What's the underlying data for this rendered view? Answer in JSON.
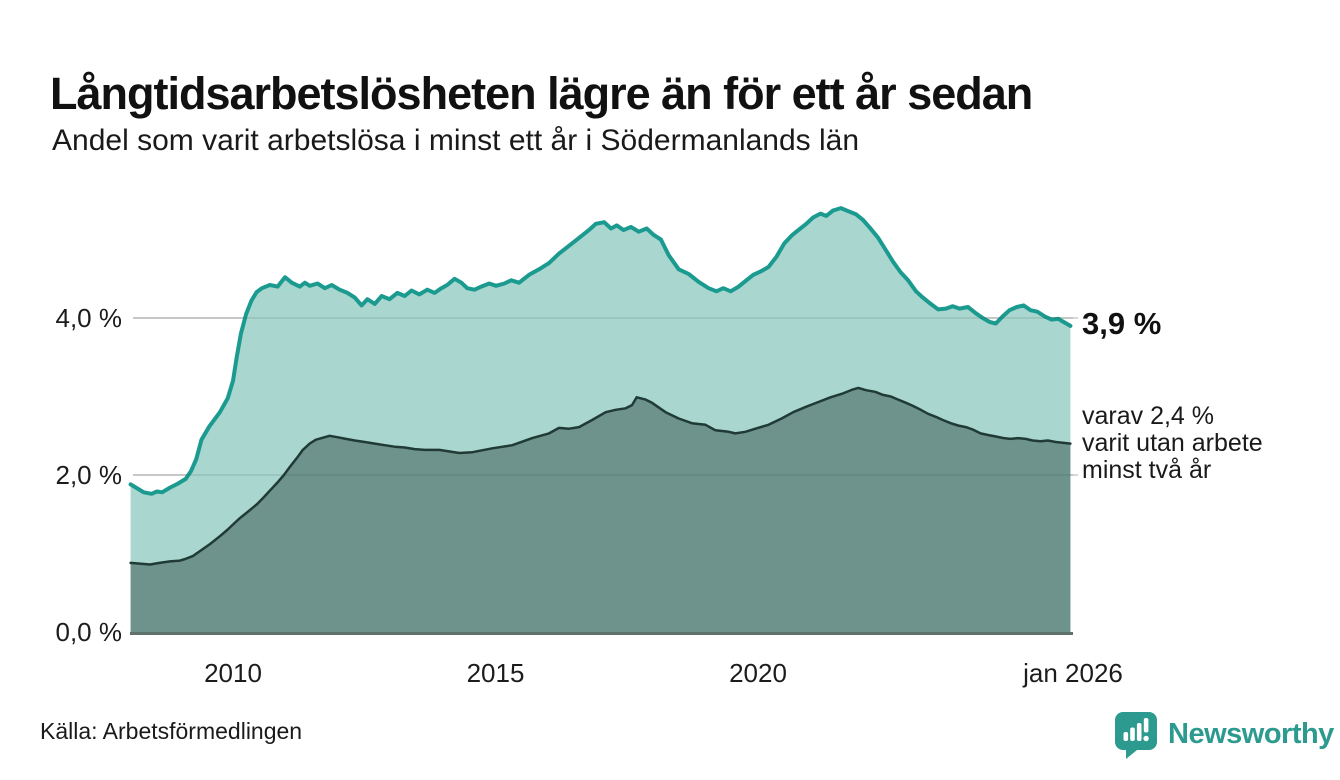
{
  "header": {
    "title": "Långtidsarbetslösheten lägre än för ett år sedan",
    "subtitle": "Andel som varit arbetslösa i minst ett år i Södermanlands län"
  },
  "footer": {
    "source": "Källa: Arbetsförmedlingen",
    "brand": "Newsworthy"
  },
  "chart_data": {
    "type": "area",
    "title": "Långtidsarbetslösheten lägre än för ett år sedan",
    "subtitle": "Andel som varit arbetslösa i minst ett år i Södermanlands län",
    "unit": "%",
    "x_range": [
      2008.0,
      2026.0
    ],
    "ylim": [
      0,
      5.5
    ],
    "grid": "on",
    "legend_position": "none",
    "y_ticks": [
      {
        "label": "0,0 %",
        "value": 0
      },
      {
        "label": "2,0 %",
        "value": 2
      },
      {
        "label": "4,0 %",
        "value": 4
      }
    ],
    "x_ticks": [
      {
        "label": "2010",
        "year": 2010
      },
      {
        "label": "2015",
        "year": 2015
      },
      {
        "label": "2020",
        "year": 2020
      },
      {
        "label": "jan 2026",
        "year": 2026
      }
    ],
    "colors": {
      "line_one_year": "#1b9a90",
      "fill_one_year": "#a9d6cf",
      "line_two_year": "#203b35",
      "fill_two_year": "#6e938c",
      "grid": "#d8d8d8",
      "axis": "#5e716d",
      "brand": "#2c9a8f"
    },
    "annotations": {
      "end_value": "3,9 %",
      "note_lines": [
        "varav 2,4 %",
        "varit utan arbete",
        "minst två år"
      ]
    },
    "series": [
      {
        "id": "unemployed_min_one_year",
        "end_value": 3.9,
        "points": [
          [
            2008.05,
            1.88
          ],
          [
            2008.2,
            1.82
          ],
          [
            2008.3,
            1.78
          ],
          [
            2008.45,
            1.76
          ],
          [
            2008.55,
            1.79
          ],
          [
            2008.65,
            1.78
          ],
          [
            2008.8,
            1.84
          ],
          [
            2008.95,
            1.89
          ],
          [
            2009.1,
            1.95
          ],
          [
            2009.2,
            2.05
          ],
          [
            2009.3,
            2.2
          ],
          [
            2009.4,
            2.45
          ],
          [
            2009.55,
            2.62
          ],
          [
            2009.75,
            2.8
          ],
          [
            2009.9,
            2.98
          ],
          [
            2010.0,
            3.2
          ],
          [
            2010.07,
            3.5
          ],
          [
            2010.15,
            3.8
          ],
          [
            2010.25,
            4.05
          ],
          [
            2010.35,
            4.22
          ],
          [
            2010.45,
            4.33
          ],
          [
            2010.55,
            4.38
          ],
          [
            2010.7,
            4.42
          ],
          [
            2010.85,
            4.4
          ],
          [
            2010.99,
            4.52
          ],
          [
            2011.12,
            4.45
          ],
          [
            2011.27,
            4.4
          ],
          [
            2011.37,
            4.45
          ],
          [
            2011.46,
            4.41
          ],
          [
            2011.61,
            4.44
          ],
          [
            2011.75,
            4.38
          ],
          [
            2011.88,
            4.42
          ],
          [
            2012.03,
            4.36
          ],
          [
            2012.18,
            4.32
          ],
          [
            2012.32,
            4.26
          ],
          [
            2012.45,
            4.16
          ],
          [
            2012.56,
            4.24
          ],
          [
            2012.7,
            4.18
          ],
          [
            2012.83,
            4.28
          ],
          [
            2012.98,
            4.24
          ],
          [
            2013.13,
            4.32
          ],
          [
            2013.27,
            4.28
          ],
          [
            2013.4,
            4.35
          ],
          [
            2013.55,
            4.3
          ],
          [
            2013.7,
            4.36
          ],
          [
            2013.84,
            4.32
          ],
          [
            2013.97,
            4.38
          ],
          [
            2014.08,
            4.42
          ],
          [
            2014.22,
            4.5
          ],
          [
            2014.35,
            4.45
          ],
          [
            2014.46,
            4.38
          ],
          [
            2014.6,
            4.36
          ],
          [
            2014.73,
            4.4
          ],
          [
            2014.88,
            4.44
          ],
          [
            2015.01,
            4.41
          ],
          [
            2015.17,
            4.44
          ],
          [
            2015.3,
            4.48
          ],
          [
            2015.45,
            4.45
          ],
          [
            2015.64,
            4.55
          ],
          [
            2015.83,
            4.62
          ],
          [
            2016.02,
            4.7
          ],
          [
            2016.21,
            4.82
          ],
          [
            2016.4,
            4.92
          ],
          [
            2016.59,
            5.02
          ],
          [
            2016.78,
            5.12
          ],
          [
            2016.91,
            5.2
          ],
          [
            2017.07,
            5.22
          ],
          [
            2017.2,
            5.14
          ],
          [
            2017.31,
            5.18
          ],
          [
            2017.44,
            5.12
          ],
          [
            2017.58,
            5.16
          ],
          [
            2017.73,
            5.1
          ],
          [
            2017.88,
            5.14
          ],
          [
            2018.01,
            5.06
          ],
          [
            2018.15,
            5.0
          ],
          [
            2018.3,
            4.8
          ],
          [
            2018.49,
            4.62
          ],
          [
            2018.68,
            4.56
          ],
          [
            2018.87,
            4.46
          ],
          [
            2019.06,
            4.38
          ],
          [
            2019.21,
            4.34
          ],
          [
            2019.34,
            4.38
          ],
          [
            2019.48,
            4.34
          ],
          [
            2019.63,
            4.4
          ],
          [
            2019.78,
            4.48
          ],
          [
            2019.91,
            4.55
          ],
          [
            2020.07,
            4.6
          ],
          [
            2020.2,
            4.65
          ],
          [
            2020.35,
            4.78
          ],
          [
            2020.5,
            4.95
          ],
          [
            2020.64,
            5.05
          ],
          [
            2020.77,
            5.12
          ],
          [
            2020.92,
            5.2
          ],
          [
            2021.05,
            5.28
          ],
          [
            2021.19,
            5.33
          ],
          [
            2021.3,
            5.3
          ],
          [
            2021.43,
            5.37
          ],
          [
            2021.58,
            5.4
          ],
          [
            2021.72,
            5.36
          ],
          [
            2021.87,
            5.32
          ],
          [
            2022.0,
            5.25
          ],
          [
            2022.13,
            5.15
          ],
          [
            2022.29,
            5.02
          ],
          [
            2022.44,
            4.86
          ],
          [
            2022.57,
            4.72
          ],
          [
            2022.72,
            4.58
          ],
          [
            2022.86,
            4.48
          ],
          [
            2023.01,
            4.34
          ],
          [
            2023.14,
            4.26
          ],
          [
            2023.29,
            4.18
          ],
          [
            2023.43,
            4.11
          ],
          [
            2023.58,
            4.12
          ],
          [
            2023.71,
            4.15
          ],
          [
            2023.84,
            4.12
          ],
          [
            2024.0,
            4.14
          ],
          [
            2024.15,
            4.06
          ],
          [
            2024.28,
            4.0
          ],
          [
            2024.41,
            3.95
          ],
          [
            2024.53,
            3.93
          ],
          [
            2024.66,
            4.02
          ],
          [
            2024.79,
            4.1
          ],
          [
            2024.93,
            4.14
          ],
          [
            2025.06,
            4.16
          ],
          [
            2025.19,
            4.1
          ],
          [
            2025.32,
            4.08
          ],
          [
            2025.46,
            4.02
          ],
          [
            2025.59,
            3.98
          ],
          [
            2025.72,
            3.99
          ],
          [
            2025.82,
            3.95
          ],
          [
            2025.95,
            3.9
          ]
        ]
      },
      {
        "id": "unemployed_min_two_years",
        "end_value": 2.4,
        "points": [
          [
            2008.05,
            0.88
          ],
          [
            2008.25,
            0.87
          ],
          [
            2008.42,
            0.86
          ],
          [
            2008.6,
            0.88
          ],
          [
            2008.8,
            0.9
          ],
          [
            2008.99,
            0.91
          ],
          [
            2009.09,
            0.93
          ],
          [
            2009.24,
            0.97
          ],
          [
            2009.37,
            1.03
          ],
          [
            2009.56,
            1.12
          ],
          [
            2009.75,
            1.22
          ],
          [
            2009.89,
            1.3
          ],
          [
            2010.0,
            1.37
          ],
          [
            2010.13,
            1.45
          ],
          [
            2010.28,
            1.53
          ],
          [
            2010.46,
            1.63
          ],
          [
            2010.59,
            1.72
          ],
          [
            2010.7,
            1.8
          ],
          [
            2010.84,
            1.9
          ],
          [
            2010.97,
            2.0
          ],
          [
            2011.08,
            2.1
          ],
          [
            2011.22,
            2.22
          ],
          [
            2011.33,
            2.32
          ],
          [
            2011.46,
            2.4
          ],
          [
            2011.58,
            2.45
          ],
          [
            2011.69,
            2.47
          ],
          [
            2011.84,
            2.5
          ],
          [
            2012.0,
            2.48
          ],
          [
            2012.15,
            2.46
          ],
          [
            2012.32,
            2.44
          ],
          [
            2012.51,
            2.42
          ],
          [
            2012.7,
            2.4
          ],
          [
            2012.89,
            2.38
          ],
          [
            2013.08,
            2.36
          ],
          [
            2013.27,
            2.35
          ],
          [
            2013.46,
            2.33
          ],
          [
            2013.65,
            2.32
          ],
          [
            2013.93,
            2.32
          ],
          [
            2014.31,
            2.28
          ],
          [
            2014.56,
            2.29
          ],
          [
            2014.94,
            2.34
          ],
          [
            2015.32,
            2.38
          ],
          [
            2015.7,
            2.47
          ],
          [
            2016.02,
            2.53
          ],
          [
            2016.21,
            2.6
          ],
          [
            2016.4,
            2.59
          ],
          [
            2016.59,
            2.61
          ],
          [
            2016.84,
            2.7
          ],
          [
            2017.1,
            2.8
          ],
          [
            2017.29,
            2.83
          ],
          [
            2017.48,
            2.85
          ],
          [
            2017.6,
            2.89
          ],
          [
            2017.69,
            2.99
          ],
          [
            2017.86,
            2.96
          ],
          [
            2017.98,
            2.92
          ],
          [
            2018.24,
            2.8
          ],
          [
            2018.49,
            2.72
          ],
          [
            2018.74,
            2.66
          ],
          [
            2019.0,
            2.64
          ],
          [
            2019.19,
            2.57
          ],
          [
            2019.44,
            2.55
          ],
          [
            2019.57,
            2.53
          ],
          [
            2019.76,
            2.55
          ],
          [
            2019.95,
            2.59
          ],
          [
            2020.2,
            2.64
          ],
          [
            2020.45,
            2.72
          ],
          [
            2020.67,
            2.8
          ],
          [
            2020.92,
            2.87
          ],
          [
            2021.15,
            2.93
          ],
          [
            2021.38,
            2.99
          ],
          [
            2021.62,
            3.04
          ],
          [
            2021.81,
            3.09
          ],
          [
            2021.91,
            3.11
          ],
          [
            2022.06,
            3.08
          ],
          [
            2022.23,
            3.06
          ],
          [
            2022.38,
            3.02
          ],
          [
            2022.53,
            3.0
          ],
          [
            2022.67,
            2.96
          ],
          [
            2022.82,
            2.92
          ],
          [
            2022.95,
            2.88
          ],
          [
            2023.1,
            2.83
          ],
          [
            2023.24,
            2.78
          ],
          [
            2023.39,
            2.74
          ],
          [
            2023.52,
            2.7
          ],
          [
            2023.67,
            2.66
          ],
          [
            2023.81,
            2.63
          ],
          [
            2023.96,
            2.61
          ],
          [
            2024.09,
            2.58
          ],
          [
            2024.24,
            2.53
          ],
          [
            2024.38,
            2.51
          ],
          [
            2024.53,
            2.49
          ],
          [
            2024.68,
            2.47
          ],
          [
            2024.81,
            2.46
          ],
          [
            2024.95,
            2.47
          ],
          [
            2025.1,
            2.46
          ],
          [
            2025.23,
            2.44
          ],
          [
            2025.38,
            2.43
          ],
          [
            2025.52,
            2.44
          ],
          [
            2025.67,
            2.42
          ],
          [
            2025.8,
            2.41
          ],
          [
            2025.95,
            2.4
          ]
        ]
      }
    ]
  }
}
